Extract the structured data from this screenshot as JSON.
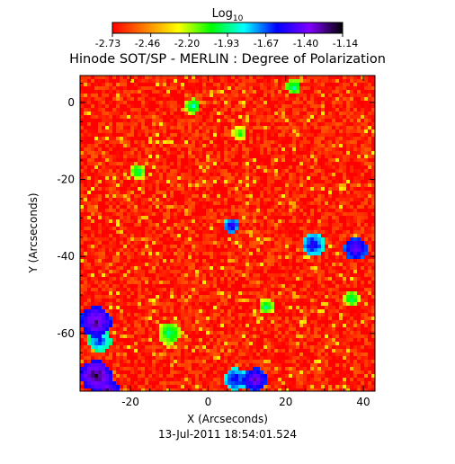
{
  "chart_data": {
    "type": "heatmap",
    "title": "Hinode SOT/SP - MERLIN : Degree of Polarization",
    "colorbar": {
      "label_base": "Log",
      "label_sub": "10",
      "ticks": [
        "-2.73",
        "-2.46",
        "-2.20",
        "-1.93",
        "-1.67",
        "-1.40",
        "-1.14"
      ],
      "range": [
        -2.73,
        -1.14
      ],
      "colors": [
        "#ff0000",
        "#ff7f00",
        "#ffff00",
        "#00ff00",
        "#00ffff",
        "#0000ff",
        "#8000ff",
        "#000000"
      ]
    },
    "xlabel": "X (Arcseconds)",
    "ylabel": "Y (Arcseconds)",
    "xlim": [
      -33,
      43
    ],
    "ylim": [
      -75,
      7
    ],
    "xticks": [
      -20,
      0,
      20,
      40
    ],
    "yticks": [
      0,
      -20,
      -40,
      -60
    ],
    "xtick_labels": [
      "-20",
      "0",
      "20",
      "40"
    ],
    "ytick_labels": [
      "0",
      "-20",
      "-40",
      "-60"
    ],
    "timestamp": "13-Jul-2011  18:54:01.524",
    "background_level": -2.68,
    "features": [
      {
        "x": -29,
        "y": -57,
        "value": -1.25,
        "radius": 4
      },
      {
        "x": -29,
        "y": -71,
        "value": -1.2,
        "radius": 4
      },
      {
        "x": -28,
        "y": -62,
        "value": -1.6,
        "radius": 3
      },
      {
        "x": -26,
        "y": -75,
        "value": -1.25,
        "radius": 3
      },
      {
        "x": 6,
        "y": -32,
        "value": -1.45,
        "radius": 2
      },
      {
        "x": 7,
        "y": -72,
        "value": -1.5,
        "radius": 3
      },
      {
        "x": 12,
        "y": -72,
        "value": -1.3,
        "radius": 3
      },
      {
        "x": 27,
        "y": -37,
        "value": -1.5,
        "radius": 3
      },
      {
        "x": 38,
        "y": -38,
        "value": -1.35,
        "radius": 3
      },
      {
        "x": -4,
        "y": -1,
        "value": -1.85,
        "radius": 2
      },
      {
        "x": -18,
        "y": -18,
        "value": -1.9,
        "radius": 2
      },
      {
        "x": -10,
        "y": -60,
        "value": -1.9,
        "radius": 3
      },
      {
        "x": 15,
        "y": -53,
        "value": -1.9,
        "radius": 2
      },
      {
        "x": 22,
        "y": 4,
        "value": -1.85,
        "radius": 2
      },
      {
        "x": 37,
        "y": -51,
        "value": -1.9,
        "radius": 2
      },
      {
        "x": 8,
        "y": -8,
        "value": -2.0,
        "radius": 2
      }
    ]
  }
}
